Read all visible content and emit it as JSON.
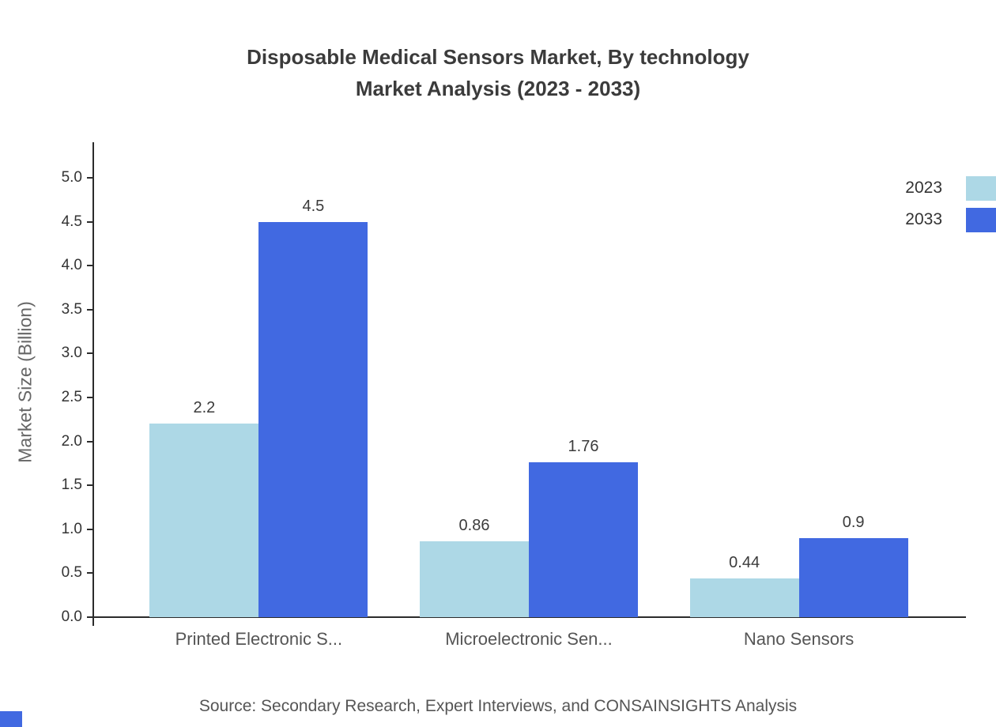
{
  "title": {
    "line1": "Disposable Medical Sensors Market, By technology",
    "line2": "Market Analysis (2023 - 2033)"
  },
  "source": "Source: Secondary Research, Expert Interviews, and CONSAINSIGHTS Analysis",
  "colors": {
    "series_2023": "#add8e6",
    "series_2033": "#4169e1",
    "axis": "#2b2b2b",
    "text": "#3b3b3b"
  },
  "chart_data": {
    "type": "bar",
    "title": "Disposable Medical Sensors Market, By technology Market Analysis (2023 - 2033)",
    "categories": [
      "Printed Electronic S...",
      "Microelectronic Sen...",
      "Nano Sensors"
    ],
    "series": [
      {
        "name": "2023",
        "color": "#add8e6",
        "values": [
          2.2,
          0.86,
          0.44
        ]
      },
      {
        "name": "2033",
        "color": "#4169e1",
        "values": [
          4.5,
          1.76,
          0.9
        ]
      }
    ],
    "xlabel": "",
    "ylabel": "Market Size (Billion)",
    "ylim": [
      0,
      5.0
    ],
    "ytick_step": 0.5,
    "grid": false,
    "legend_position": "top-right"
  }
}
